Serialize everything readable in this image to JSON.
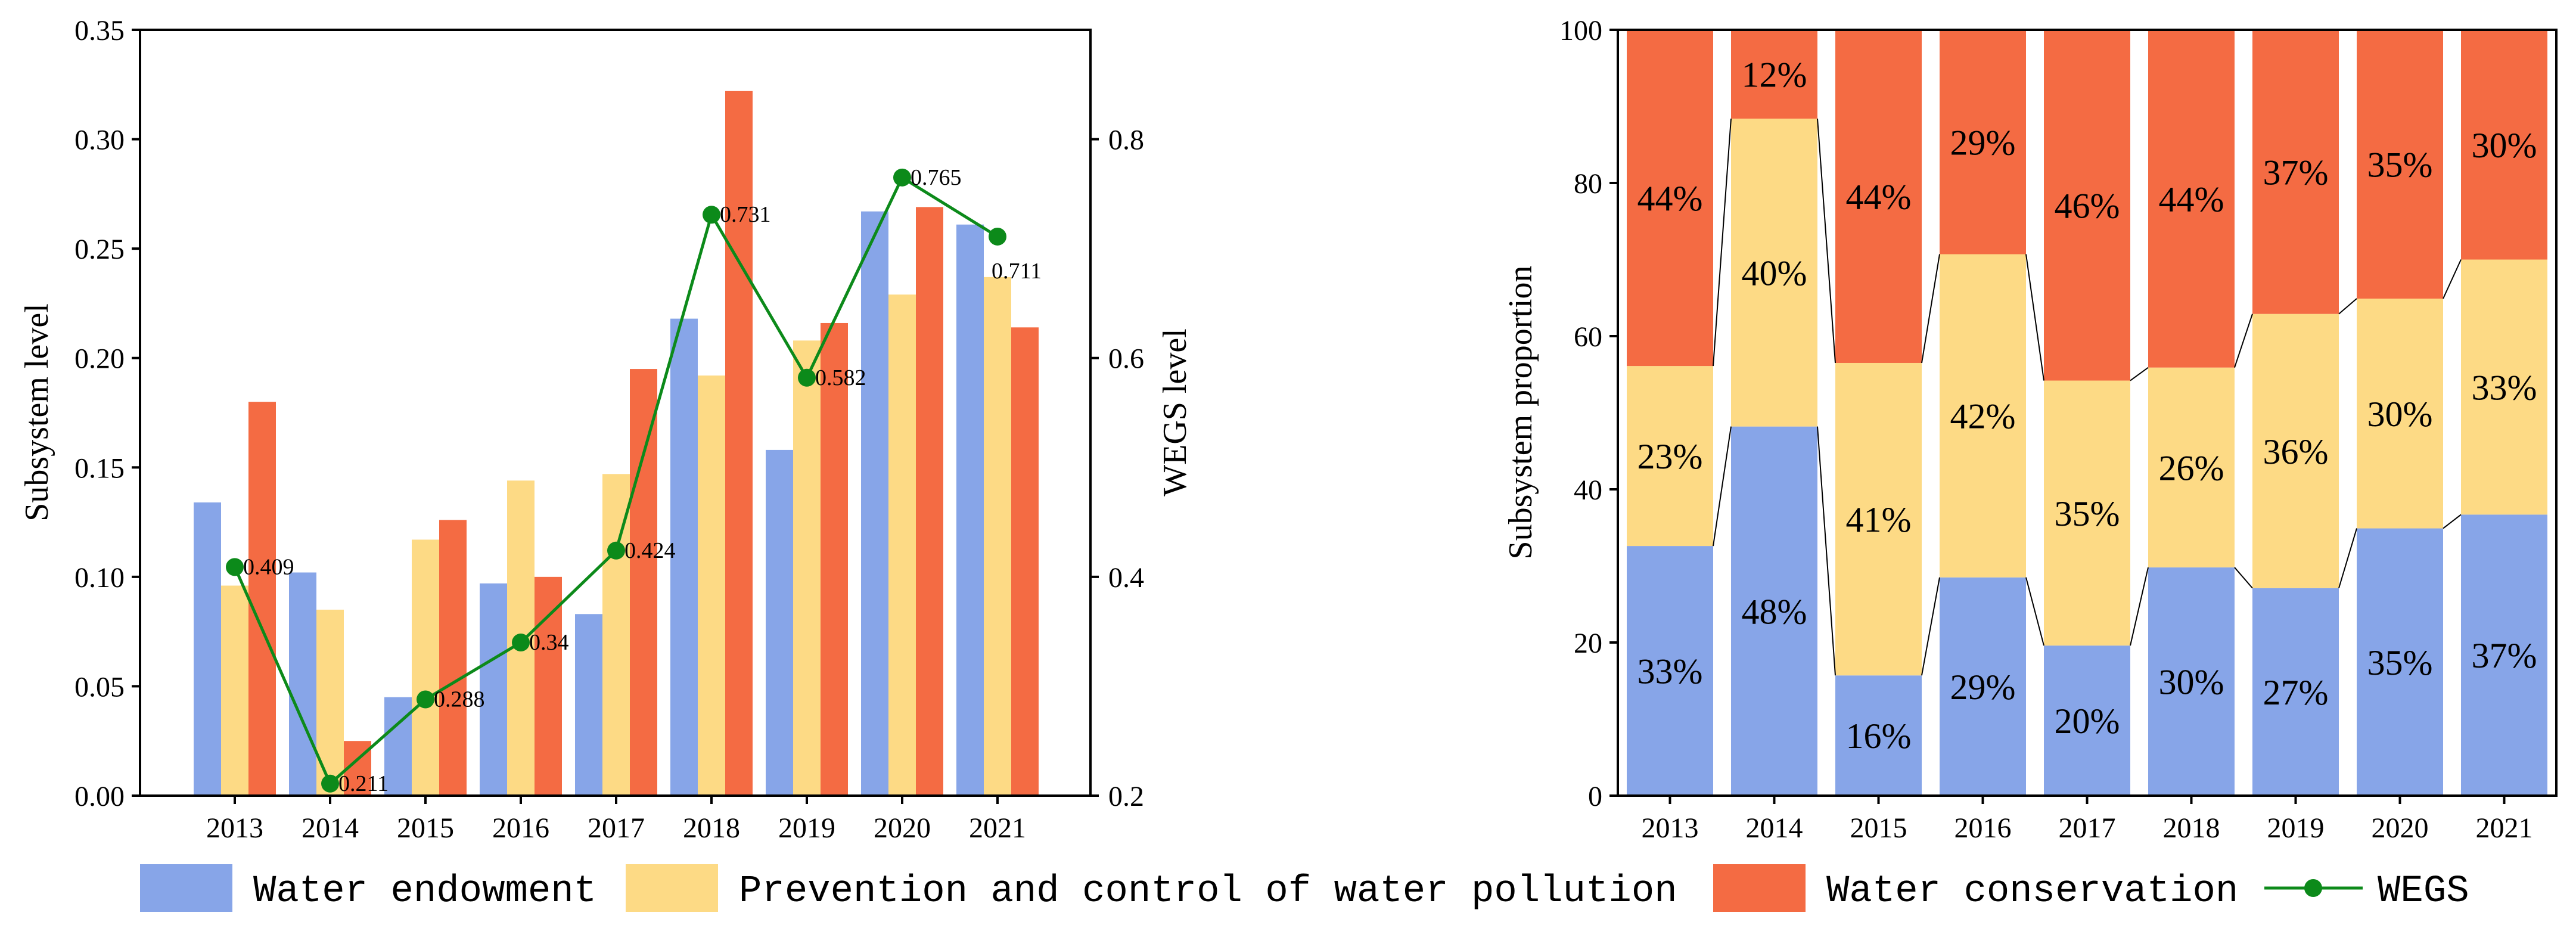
{
  "colors": {
    "water_endowment": "#87A5E8",
    "water_pollution": "#FDDA85",
    "water_conservation": "#F46B43",
    "wegs": "#0C8A1A"
  },
  "chart_data": [
    {
      "type": "bar",
      "categories": [
        "2013",
        "2014",
        "2015",
        "2016",
        "2017",
        "2018",
        "2019",
        "2020",
        "2021"
      ],
      "series": [
        {
          "name": "Water endowment",
          "values": [
            0.134,
            0.102,
            0.045,
            0.097,
            0.083,
            0.218,
            0.158,
            0.267,
            0.261
          ]
        },
        {
          "name": "Prevention and control of water pollution",
          "values": [
            0.096,
            0.085,
            0.117,
            0.144,
            0.147,
            0.192,
            0.208,
            0.229,
            0.237
          ]
        },
        {
          "name": "Water conservation",
          "values": [
            0.18,
            0.025,
            0.126,
            0.1,
            0.195,
            0.322,
            0.216,
            0.269,
            0.214
          ]
        }
      ],
      "line_series": {
        "name": "WEGS",
        "axis": "right",
        "values": [
          0.409,
          0.211,
          0.288,
          0.34,
          0.424,
          0.731,
          0.582,
          0.765,
          0.711
        ]
      },
      "ylabel": "Subsystem level",
      "ylabel_right": "WEGS level",
      "ylim": [
        0,
        0.35
      ],
      "ylim_right": [
        0.2,
        0.9
      ],
      "yticks": [
        "0.00",
        "0.05",
        "0.10",
        "0.15",
        "0.20",
        "0.25",
        "0.30",
        "0.35"
      ],
      "yticks_right": [
        "0.2",
        "0.4",
        "0.6",
        "0.8"
      ]
    },
    {
      "type": "stacked-bar",
      "categories": [
        "2013",
        "2014",
        "2015",
        "2016",
        "2017",
        "2018",
        "2019",
        "2020",
        "2021"
      ],
      "series": [
        {
          "name": "Water endowment",
          "values": [
            32.6,
            48.2,
            15.7,
            28.5,
            19.6,
            29.8,
            27.1,
            34.9,
            36.7
          ],
          "labels": [
            "33%",
            "48%",
            "16%",
            "29%",
            "20%",
            "30%",
            "27%",
            "35%",
            "37%"
          ]
        },
        {
          "name": "Prevention and control of water pollution",
          "values": [
            23.5,
            40.2,
            40.8,
            42.2,
            34.6,
            26.1,
            35.8,
            30.0,
            33.3
          ],
          "labels": [
            "23%",
            "40%",
            "41%",
            "42%",
            "35%",
            "26%",
            "36%",
            "30%",
            "33%"
          ]
        },
        {
          "name": "Water conservation",
          "values": [
            43.9,
            11.6,
            43.5,
            29.3,
            45.8,
            44.1,
            37.1,
            35.1,
            30.0
          ],
          "labels": [
            "44%",
            "12%",
            "44%",
            "29%",
            "46%",
            "44%",
            "37%",
            "35%",
            "30%"
          ]
        }
      ],
      "ylabel": "Subsystem proportion",
      "ylim": [
        0,
        100
      ],
      "yticks": [
        "0",
        "20",
        "40",
        "60",
        "80",
        "100"
      ]
    }
  ],
  "legend": {
    "items": [
      {
        "label": "Water endowment",
        "kind": "bar"
      },
      {
        "label": "Prevention and control of water pollution",
        "kind": "bar"
      },
      {
        "label": "Water conservation",
        "kind": "bar"
      },
      {
        "label": "WEGS",
        "kind": "line"
      }
    ]
  }
}
